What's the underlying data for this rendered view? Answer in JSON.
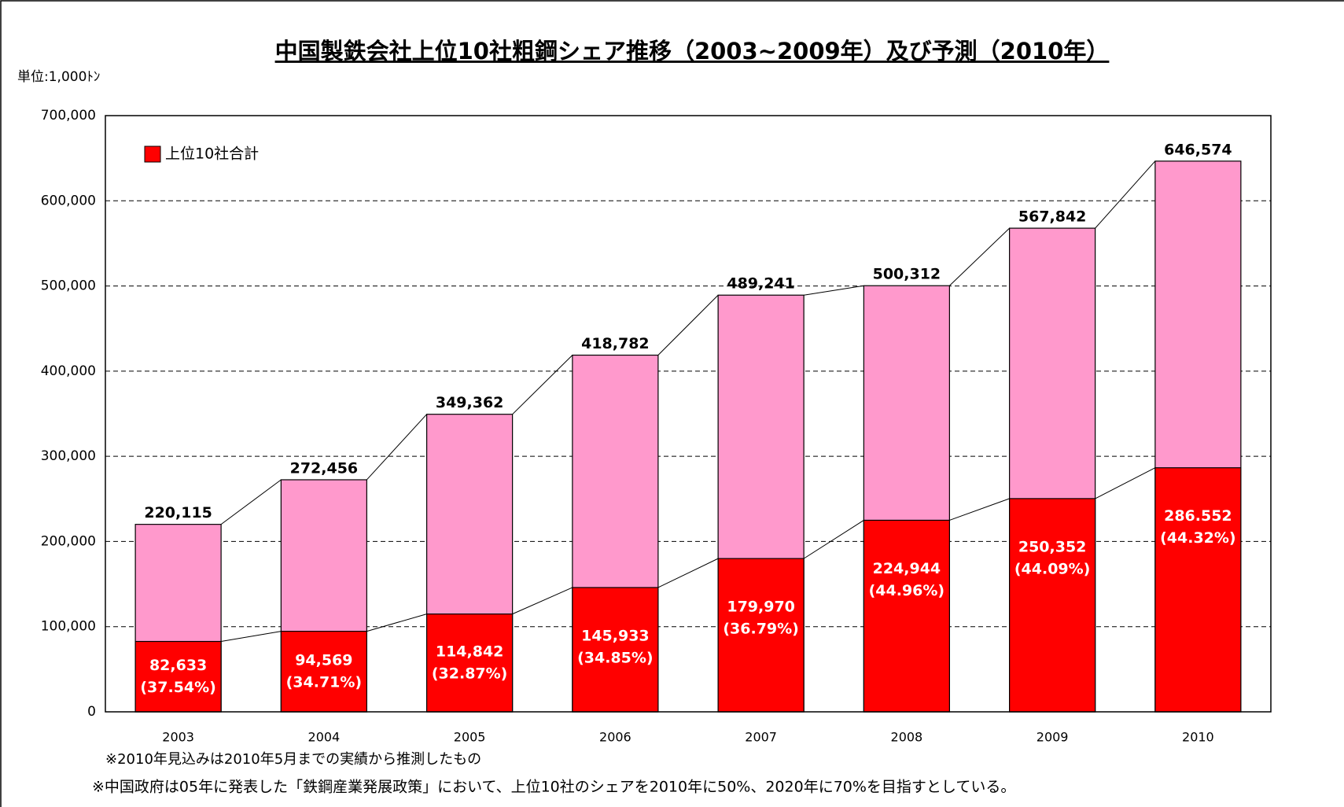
{
  "chart_data": {
    "type": "overlap-bar",
    "title": "中国製鉄会社上位10社粗鋼シェア推移（2003~2009年）及び予測（2010年）",
    "unit": "単位:1,000ﾄﾝ",
    "categories": [
      "2003",
      "2004",
      "2005",
      "2006",
      "2007",
      "2008",
      "2009",
      "2010"
    ],
    "series": [
      {
        "color": "#ff99cc",
        "values": [
          220115,
          272456,
          349362,
          418782,
          489241,
          500312,
          567842,
          646574
        ],
        "value_labels": [
          "220,115",
          "272,456",
          "349,362",
          "418,782",
          "489,241",
          "500,312",
          "567,842",
          "646,574"
        ]
      },
      {
        "name": "上位10社合計",
        "color": "#ff0000",
        "values": [
          82633,
          94569,
          114842,
          145933,
          179970,
          224944,
          250352,
          286552
        ],
        "value_labels": [
          "82,633",
          "94,569",
          "114,842",
          "145,933",
          "179,970",
          "224,944",
          "250,352",
          "286.552"
        ],
        "share_labels": [
          "(37.54%)",
          "(34.71%)",
          "(32.87%)",
          "(34.85%)",
          "(36.79%)",
          "(44.96%)",
          "(44.09%)",
          "(44.32%)"
        ]
      }
    ],
    "ylim": [
      0,
      700000
    ],
    "yticks": [
      0,
      {
        "value": 100000,
        "label": "100,000"
      },
      {
        "value": 200000,
        "label": "200,000"
      },
      {
        "value": 300000,
        "label": "300,000"
      },
      {
        "value": 400000,
        "label": "400,000"
      },
      {
        "value": 500000,
        "label": "500,000"
      },
      {
        "value": 600000,
        "label": "600,000"
      },
      {
        "value": 700000,
        "label": "700,000"
      }
    ],
    "grid": true,
    "legend": "top-left",
    "notes": [
      "※2010年見込みは2010年5月までの実績から推測したもの",
      "※中国政府は05年に発表した「鉄鋼産業発展政策」において、上位10社のシェアを2010年に50%、2020年に70%を目指すとしている。"
    ]
  }
}
